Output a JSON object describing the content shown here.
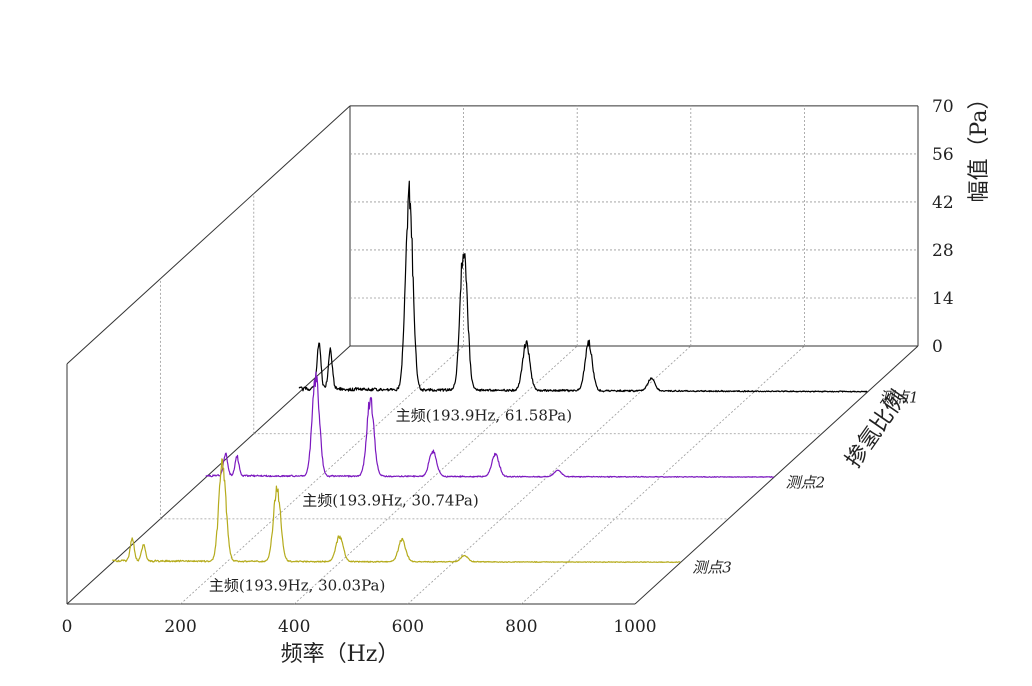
{
  "chart_data": {
    "type": "line",
    "view": "3d-waterfall",
    "xlabel": "频率（Hz）",
    "zlabel": "幅值（Pa）",
    "ylabel": "掺氢比例",
    "xlim": [
      0,
      1000
    ],
    "zlim": [
      0,
      70
    ],
    "x_ticks": [
      "0",
      "200",
      "400",
      "600",
      "800",
      "1000"
    ],
    "z_ticks": [
      "0",
      "14",
      "28",
      "42",
      "56",
      "70"
    ],
    "grid": true,
    "series": [
      {
        "name": "测点1",
        "color": "#000000",
        "annotation": "主频(193.9Hz, 61.58Pa)",
        "peaks": [
          {
            "x": 35,
            "y": 14
          },
          {
            "x": 55,
            "y": 12
          },
          {
            "x": 193.9,
            "y": 61.58
          },
          {
            "x": 290,
            "y": 45
          },
          {
            "x": 400,
            "y": 15
          },
          {
            "x": 510,
            "y": 15
          },
          {
            "x": 620,
            "y": 4
          }
        ]
      },
      {
        "name": "测点2",
        "color": "#7b18bf",
        "annotation": "主频(193.9Hz, 30.74Pa)",
        "peaks": [
          {
            "x": 35,
            "y": 7
          },
          {
            "x": 55,
            "y": 6
          },
          {
            "x": 193.9,
            "y": 30.74
          },
          {
            "x": 290,
            "y": 24
          },
          {
            "x": 400,
            "y": 8
          },
          {
            "x": 510,
            "y": 7
          },
          {
            "x": 620,
            "y": 2
          }
        ]
      },
      {
        "name": "测点3",
        "color": "#b5ab1c",
        "annotation": "主频(193.9Hz, 30.03Pa)",
        "peaks": [
          {
            "x": 35,
            "y": 7
          },
          {
            "x": 55,
            "y": 5
          },
          {
            "x": 193.9,
            "y": 30.03
          },
          {
            "x": 290,
            "y": 23
          },
          {
            "x": 400,
            "y": 8
          },
          {
            "x": 510,
            "y": 7
          },
          {
            "x": 620,
            "y": 2
          }
        ]
      }
    ]
  }
}
